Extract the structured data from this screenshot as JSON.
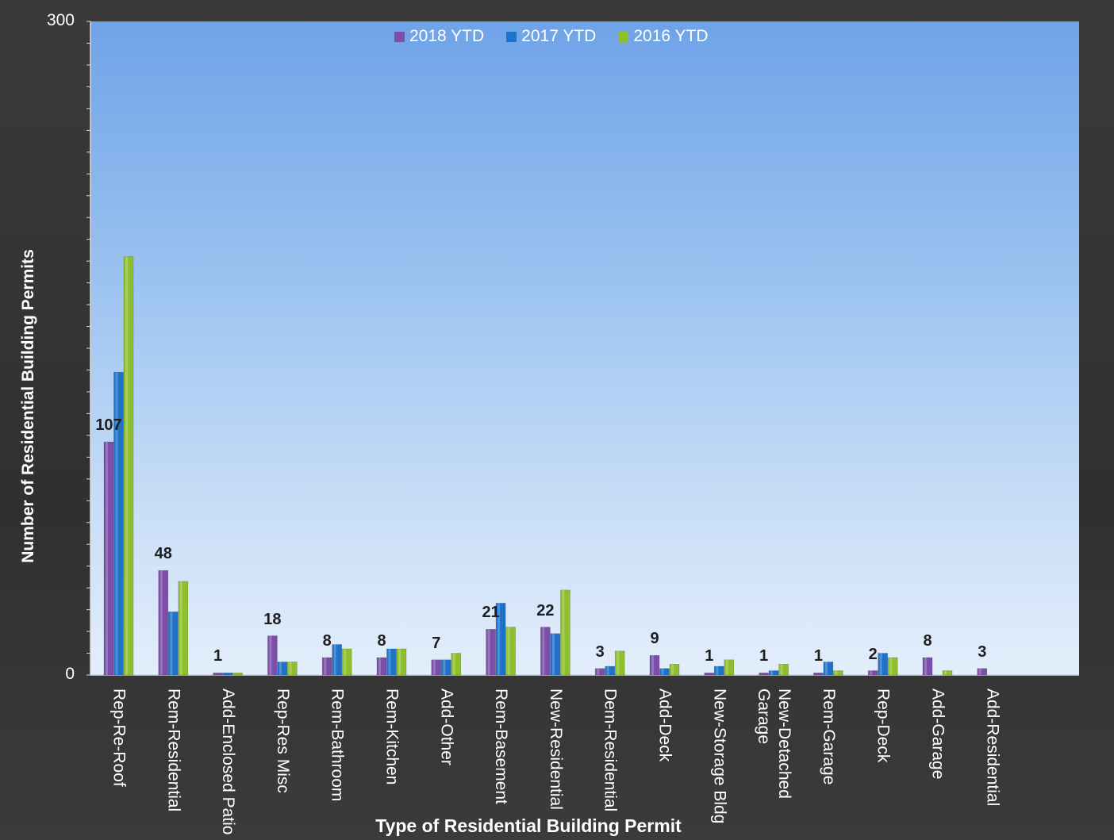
{
  "chart_data": {
    "type": "bar",
    "title": "",
    "xlabel": "Type of Residential Building Permit",
    "ylabel": "Number of Residential Building Permits",
    "ylim": [
      0,
      300
    ],
    "yticks": [
      "0",
      "300"
    ],
    "legend_position": "top-center",
    "grid": false,
    "categories": [
      "Rep-Re-Roof",
      "Rem-Residential",
      "Add-Enclosed Patio",
      "Rep-Res Misc",
      "Rem-Bathroom",
      "Rem-Kitchen",
      "Add-Other",
      "Rem-Basement",
      "New-Residential",
      "Dem-Residential",
      "Add-Deck",
      "New-Storage Bldg",
      "New-Detached\nGarage",
      "Rem-Garage",
      "Rep-Deck",
      "Add-Garage",
      "Add-Residential"
    ],
    "series": [
      {
        "name": "2018 YTD",
        "color": "#7b4fa8",
        "values": [
          107,
          48,
          1,
          18,
          8,
          8,
          7,
          21,
          22,
          3,
          9,
          1,
          1,
          1,
          2,
          8,
          3
        ],
        "labels": [
          "107",
          "48",
          "1",
          "18",
          "8",
          "8",
          "7",
          "21",
          "22",
          "3",
          "9",
          "1",
          "1",
          "1",
          "2",
          "8",
          "3"
        ]
      },
      {
        "name": "2017 YTD",
        "color": "#1e72c8",
        "values": [
          139,
          29,
          1,
          6,
          14,
          12,
          7,
          33,
          19,
          4,
          3,
          4,
          2,
          6,
          10,
          0,
          0
        ]
      },
      {
        "name": "2016 YTD",
        "color": "#8ec02e",
        "values": [
          192,
          43,
          1,
          6,
          12,
          12,
          10,
          22,
          39,
          11,
          5,
          7,
          5,
          2,
          8,
          2,
          0
        ]
      }
    ]
  }
}
